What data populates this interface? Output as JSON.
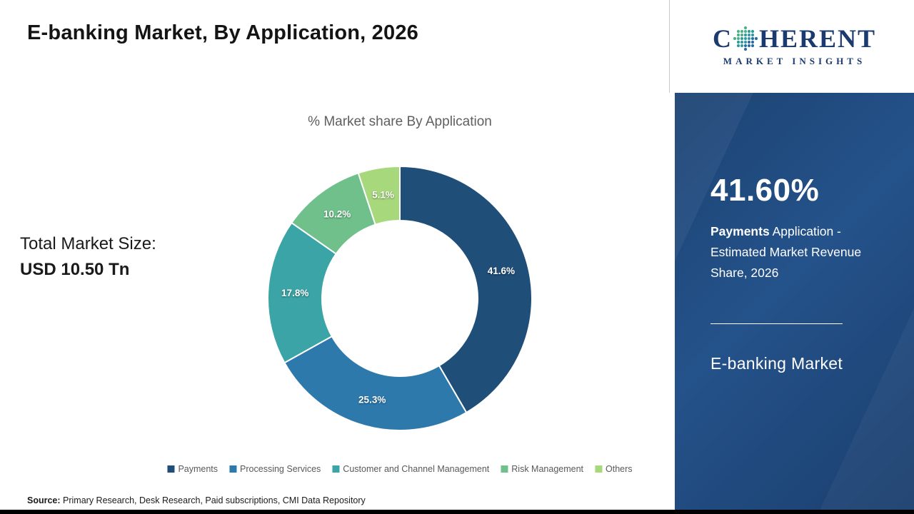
{
  "header": {
    "title": "E-banking Market, By Application, 2026"
  },
  "logo": {
    "word_prefix": "C",
    "word_suffix": "HERENT",
    "subtitle": "MARKET INSIGHTS",
    "brand_color": "#1B3A6E"
  },
  "market_size": {
    "label": "Total Market Size:",
    "value": "USD 10.50 Tn"
  },
  "chart_data": {
    "type": "pie",
    "donut": true,
    "title": "% Market share By Application",
    "start_angle_deg": 0,
    "direction": "clockwise",
    "legend_position": "bottom",
    "slices": [
      {
        "label": "Payments",
        "value": 41.6,
        "display": "41.6%",
        "color": "#1F4E79"
      },
      {
        "label": "Processing Services",
        "value": 25.3,
        "display": "25.3%",
        "color": "#2E79AC"
      },
      {
        "label": "Customer and Channel Management",
        "value": 17.8,
        "display": "17.8%",
        "color": "#3BA4A6"
      },
      {
        "label": "Risk Management",
        "value": 10.2,
        "display": "10.2%",
        "color": "#6FC08B"
      },
      {
        "label": "Others",
        "value": 5.1,
        "display": "5.1%",
        "color": "#A7D87C"
      }
    ]
  },
  "sidebar": {
    "stat_value": "41.60%",
    "stat_bold": "Payments",
    "stat_rest": " Application - Estimated Market Revenue Share, 2026",
    "panel_title": "E-banking Market"
  },
  "footer": {
    "source_label": "Source:",
    "source_text": " Primary Research, Desk Research, Paid subscriptions, CMI Data Repository"
  }
}
